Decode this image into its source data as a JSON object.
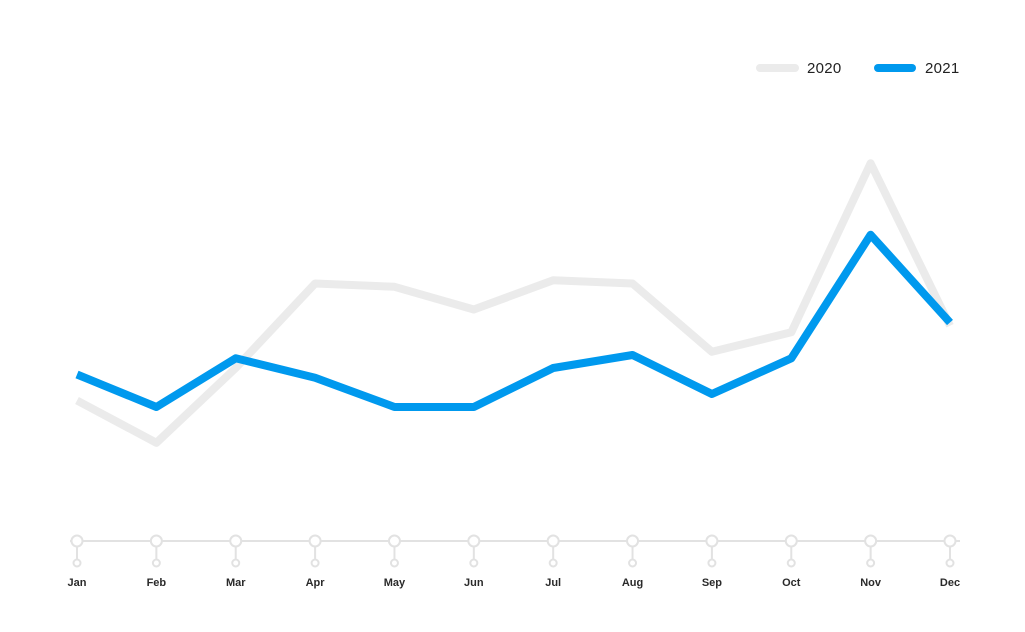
{
  "chart_data": {
    "type": "line",
    "title": "",
    "xlabel": "",
    "ylabel": "",
    "categories": [
      "Jan",
      "Feb",
      "Mar",
      "Apr",
      "May",
      "Jun",
      "Jul",
      "Aug",
      "Sep",
      "Oct",
      "Nov",
      "Dec"
    ],
    "series": [
      {
        "name": "2020",
        "color": "#ebebeb",
        "values": [
          26,
          13,
          36,
          62,
          61,
          54,
          63,
          62,
          41,
          47,
          99,
          49
        ]
      },
      {
        "name": "2021",
        "color": "#0099ee",
        "values": [
          34,
          24,
          39,
          33,
          24,
          24,
          36,
          40,
          28,
          39,
          77,
          50
        ]
      }
    ],
    "ylim": [
      0,
      100
    ],
    "grid": false,
    "legend_position": "top-right",
    "axis_color": "#e2e2e2"
  }
}
